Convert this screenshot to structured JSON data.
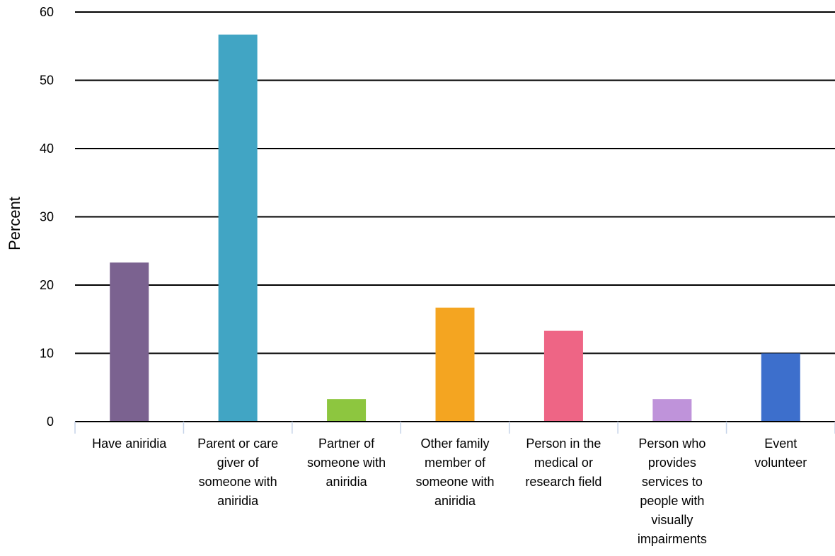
{
  "chart_data": {
    "type": "bar",
    "title": "",
    "xlabel": "",
    "ylabel": "Percent",
    "ylim": [
      0,
      60
    ],
    "yticks": [
      0,
      10,
      20,
      30,
      40,
      50,
      60
    ],
    "grid": true,
    "categories": [
      "Have aniridia",
      "Parent or care giver of someone with aniridia",
      "Partner of someone with aniridia",
      "Other family member of someone with aniridia",
      "Person in the medical or research field",
      "Person who provides services to people with visually impairments",
      "Event volunteer"
    ],
    "category_lines": [
      [
        "Have aniridia"
      ],
      [
        "Parent or care",
        "giver of",
        "someone with",
        "aniridia"
      ],
      [
        "Partner of",
        "someone with",
        "aniridia"
      ],
      [
        "Other family",
        "member of",
        "someone with",
        "aniridia"
      ],
      [
        "Person in the",
        "medical or",
        "research field"
      ],
      [
        "Person who",
        "provides",
        "services to",
        "people with",
        "visually",
        "impairments"
      ],
      [
        "Event",
        "volunteer"
      ]
    ],
    "values": [
      23.3,
      56.7,
      3.3,
      16.7,
      13.3,
      3.3,
      10.0
    ],
    "colors": [
      "#7b6290",
      "#41a5c4",
      "#8dc63f",
      "#f4a521",
      "#ee6585",
      "#bf93da",
      "#3d6fcc"
    ]
  }
}
